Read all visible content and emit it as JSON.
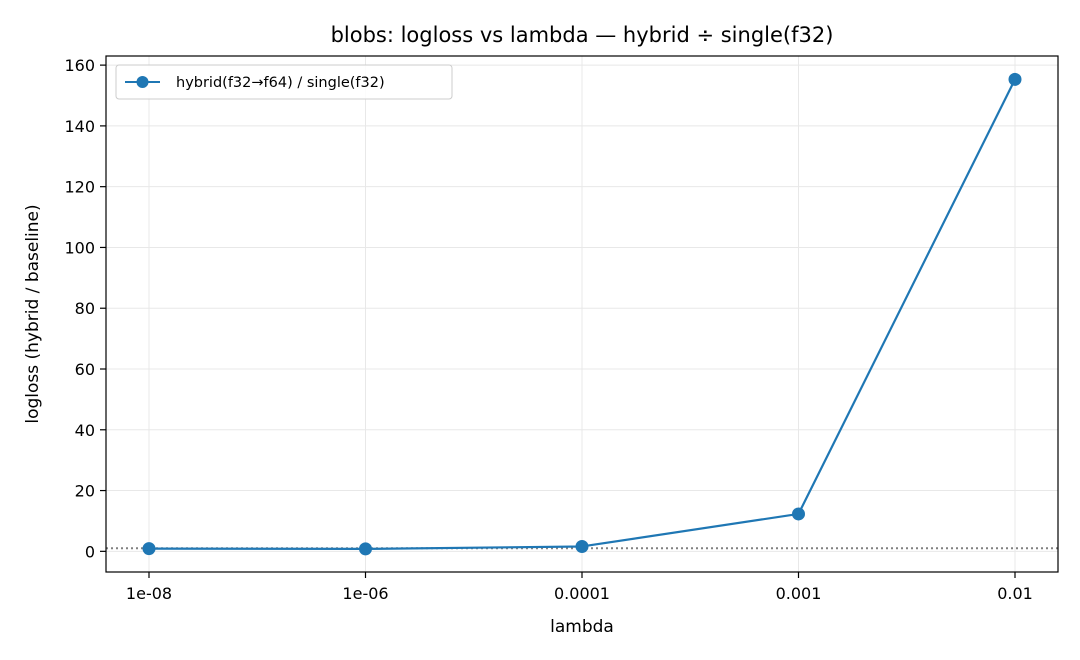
{
  "chart_data": {
    "type": "line",
    "title": "blobs: logloss vs lambda — hybrid ÷ single(f32)",
    "xlabel": "lambda",
    "ylabel": "logloss (hybrid / baseline)",
    "categories": [
      "1e-08",
      "1e-06",
      "0.0001",
      "0.001",
      "0.01"
    ],
    "series": [
      {
        "name": "hybrid(f32→f64) / single(f32)",
        "color": "#1f77b4",
        "marker": "circle",
        "values": [
          0.9,
          0.8,
          1.6,
          12.3,
          155.3
        ]
      }
    ],
    "reference_line": {
      "y": 1,
      "style": "dotted",
      "color": "#808080"
    },
    "ylim": [
      -6.8,
      163
    ],
    "yticks": [
      0,
      20,
      40,
      60,
      80,
      100,
      120,
      140,
      160
    ],
    "grid": true,
    "legend_position": "top-left"
  }
}
